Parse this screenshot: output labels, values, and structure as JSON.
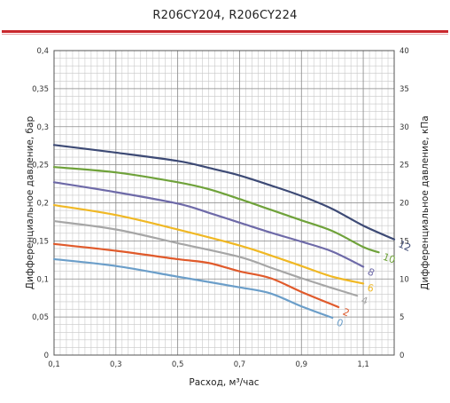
{
  "chart_data": {
    "type": "line",
    "title": "R206CY204, R206CY224",
    "xlabel": "Расход, м³/час",
    "ylabel_left": "Дифференциальное давление, бар",
    "ylabel_right": "Дифференциальное давление, кПа",
    "xlim": [
      0.1,
      1.2
    ],
    "ylim_left": [
      0,
      0.4
    ],
    "ylim_right": [
      0,
      40
    ],
    "x_ticks": [
      "0,1",
      "0,3",
      "0,5",
      "0,7",
      "0,9",
      "1,1"
    ],
    "x_tick_values": [
      0.1,
      0.3,
      0.5,
      0.7,
      0.9,
      1.1
    ],
    "y_left_ticks": [
      "0",
      "0,05",
      "0,1",
      "0,15",
      "0,2",
      "0,25",
      "0,3",
      "0,35",
      "0,4"
    ],
    "y_left_tick_values": [
      0,
      0.05,
      0.1,
      0.15,
      0.2,
      0.25,
      0.3,
      0.35,
      0.4
    ],
    "y_right_ticks": [
      "0",
      "5",
      "10",
      "15",
      "20",
      "25",
      "30",
      "35",
      "40"
    ],
    "y_right_tick_values": [
      0,
      5,
      10,
      15,
      20,
      25,
      30,
      35,
      40
    ],
    "grid": true,
    "series": [
      {
        "name": "0",
        "color": "#6b9ec9",
        "x": [
          0.1,
          0.3,
          0.5,
          0.7,
          0.8,
          0.9,
          1.0
        ],
        "y": [
          0.126,
          0.117,
          0.103,
          0.089,
          0.081,
          0.064,
          0.049
        ]
      },
      {
        "name": "2",
        "color": "#e05a2b",
        "x": [
          0.1,
          0.3,
          0.5,
          0.6,
          0.7,
          0.8,
          0.9,
          1.02
        ],
        "y": [
          0.146,
          0.137,
          0.126,
          0.121,
          0.11,
          0.101,
          0.083,
          0.063
        ]
      },
      {
        "name": "4",
        "color": "#a6a6a6",
        "x": [
          0.1,
          0.3,
          0.5,
          0.7,
          0.8,
          0.9,
          1.0,
          1.08
        ],
        "y": [
          0.176,
          0.165,
          0.147,
          0.129,
          0.115,
          0.101,
          0.088,
          0.078
        ]
      },
      {
        "name": "6",
        "color": "#f0b824",
        "x": [
          0.1,
          0.3,
          0.5,
          0.7,
          0.8,
          0.9,
          1.0,
          1.1
        ],
        "y": [
          0.197,
          0.184,
          0.165,
          0.144,
          0.131,
          0.117,
          0.103,
          0.094
        ]
      },
      {
        "name": "8",
        "color": "#6e6aa8",
        "x": [
          0.1,
          0.3,
          0.5,
          0.6,
          0.7,
          0.8,
          0.9,
          1.0,
          1.1
        ],
        "y": [
          0.227,
          0.214,
          0.199,
          0.187,
          0.174,
          0.161,
          0.149,
          0.136,
          0.116
        ]
      },
      {
        "name": "10",
        "color": "#6fa23a",
        "x": [
          0.1,
          0.3,
          0.5,
          0.6,
          0.7,
          0.8,
          0.9,
          1.0,
          1.1,
          1.15
        ],
        "y": [
          0.247,
          0.24,
          0.227,
          0.218,
          0.205,
          0.191,
          0.177,
          0.163,
          0.142,
          0.135
        ]
      },
      {
        "name": "12",
        "color": "#3d4a75",
        "x": [
          0.1,
          0.3,
          0.5,
          0.6,
          0.7,
          0.8,
          0.9,
          1.0,
          1.1,
          1.2
        ],
        "y": [
          0.276,
          0.266,
          0.255,
          0.246,
          0.236,
          0.223,
          0.209,
          0.192,
          0.17,
          0.152
        ]
      }
    ]
  }
}
